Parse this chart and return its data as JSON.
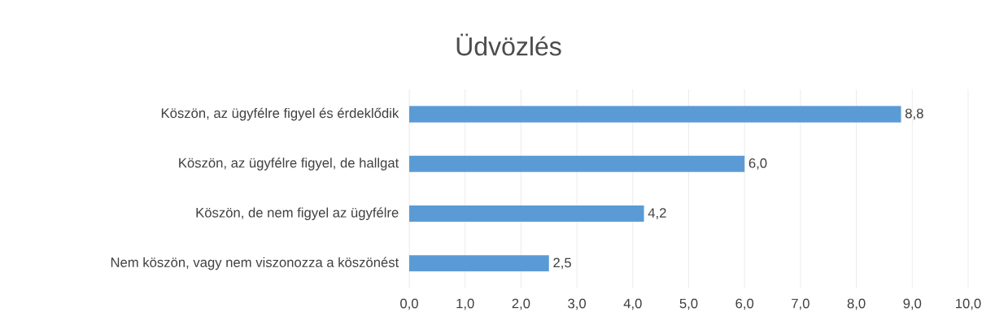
{
  "chart_data": {
    "type": "bar",
    "orientation": "horizontal",
    "title": "Üdvözlés",
    "categories": [
      "Köszön, az ügyfélre figyel és érdeklődik",
      "Köszön, az ügyfélre figyel, de hallgat",
      "Köszön, de nem figyel az ügyfélre",
      "Nem köszön, vagy nem viszonozza a köszönést"
    ],
    "values": [
      8.8,
      6.0,
      4.2,
      2.5
    ],
    "value_labels": [
      "8,8",
      "6,0",
      "4,2",
      "2,5"
    ],
    "color": "#5b9bd5",
    "xlim": [
      0,
      10
    ],
    "xticks": [
      {
        "value": 0,
        "label": "0,0"
      },
      {
        "value": 1,
        "label": "1,0"
      },
      {
        "value": 2,
        "label": "2,0"
      },
      {
        "value": 3,
        "label": "3,0"
      },
      {
        "value": 4,
        "label": "4,0"
      },
      {
        "value": 5,
        "label": "5,0"
      },
      {
        "value": 6,
        "label": "6,0"
      },
      {
        "value": 7,
        "label": "7,0"
      },
      {
        "value": 8,
        "label": "8,0"
      },
      {
        "value": 9,
        "label": "9,0"
      },
      {
        "value": 10,
        "label": "10,0"
      }
    ],
    "grid": "x"
  }
}
